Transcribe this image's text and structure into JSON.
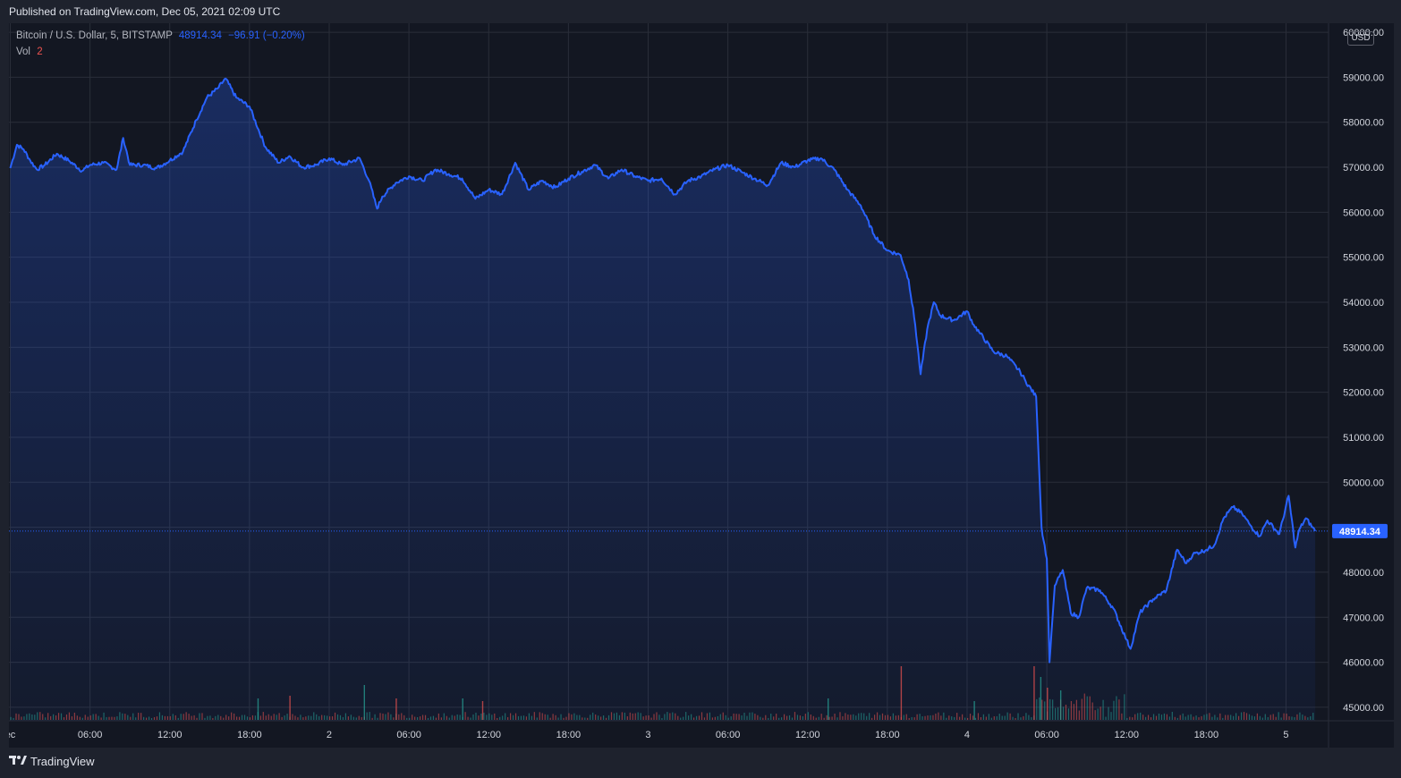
{
  "header": {
    "published": "Published on TradingView.com, Dec 05, 2021 02:09 UTC"
  },
  "legend": {
    "symbol": "Bitcoin / U.S. Dollar, 5, BITSTAMP",
    "last": "48914.34",
    "change": "−96.91 (−0.20%)",
    "vol_label": "Vol",
    "vol_value": "2"
  },
  "price_axis": {
    "currency": "USD",
    "last_price_label": "48914.34"
  },
  "footer": {
    "brand": "TradingView"
  },
  "colors": {
    "line": "#2962ff",
    "up": "#26a69a",
    "down": "#ef5350",
    "bg": "#131722",
    "grid": "#2a2e39"
  },
  "chart_data": {
    "type": "area",
    "title": "Bitcoin / U.S. Dollar, 5, BITSTAMP",
    "y_ticks": [
      45000,
      46000,
      47000,
      48000,
      49000,
      50000,
      51000,
      52000,
      53000,
      54000,
      55000,
      56000,
      57000,
      58000,
      59000,
      60000
    ],
    "ylim": [
      44700,
      60200
    ],
    "x_ticks": [
      {
        "label": "ec",
        "h": 0
      },
      {
        "label": "06:00",
        "h": 6
      },
      {
        "label": "12:00",
        "h": 12
      },
      {
        "label": "18:00",
        "h": 18
      },
      {
        "label": "2",
        "h": 24
      },
      {
        "label": "06:00",
        "h": 30
      },
      {
        "label": "12:00",
        "h": 36
      },
      {
        "label": "18:00",
        "h": 42
      },
      {
        "label": "3",
        "h": 48
      },
      {
        "label": "06:00",
        "h": 54
      },
      {
        "label": "12:00",
        "h": 60
      },
      {
        "label": "18:00",
        "h": 66
      },
      {
        "label": "4",
        "h": 72
      },
      {
        "label": "06:00",
        "h": 78
      },
      {
        "label": "12:00",
        "h": 84
      },
      {
        "label": "18:00",
        "h": 90
      },
      {
        "label": "5",
        "h": 96
      }
    ],
    "xlim": [
      -0.1,
      99.2
    ],
    "last_price": 48914.34,
    "series": [
      {
        "values": [
          [
            0,
            56980
          ],
          [
            0.5,
            57500
          ],
          [
            1,
            57400
          ],
          [
            1.5,
            57150
          ],
          [
            2,
            56950
          ],
          [
            2.6,
            57050
          ],
          [
            3.5,
            57300
          ],
          [
            4.4,
            57150
          ],
          [
            5.4,
            56920
          ],
          [
            6,
            57050
          ],
          [
            7,
            57100
          ],
          [
            8,
            56950
          ],
          [
            8.5,
            57650
          ],
          [
            9,
            57050
          ],
          [
            10,
            57050
          ],
          [
            11,
            56980
          ],
          [
            12,
            57150
          ],
          [
            13,
            57350
          ],
          [
            14,
            58050
          ],
          [
            14.8,
            58550
          ],
          [
            15.6,
            58750
          ],
          [
            16.2,
            58970
          ],
          [
            17,
            58550
          ],
          [
            18,
            58350
          ],
          [
            19.2,
            57450
          ],
          [
            20.2,
            57100
          ],
          [
            21,
            57250
          ],
          [
            22,
            57000
          ],
          [
            23,
            57050
          ],
          [
            24,
            57200
          ],
          [
            25,
            57050
          ],
          [
            26.3,
            57200
          ],
          [
            27,
            56700
          ],
          [
            27.6,
            56080
          ],
          [
            28,
            56350
          ],
          [
            29,
            56650
          ],
          [
            30,
            56800
          ],
          [
            31,
            56700
          ],
          [
            32,
            56950
          ],
          [
            33,
            56850
          ],
          [
            34,
            56750
          ],
          [
            35,
            56300
          ],
          [
            36,
            56500
          ],
          [
            37,
            56400
          ],
          [
            38,
            57100
          ],
          [
            39,
            56500
          ],
          [
            40,
            56700
          ],
          [
            41,
            56550
          ],
          [
            42,
            56750
          ],
          [
            43,
            56900
          ],
          [
            44,
            57050
          ],
          [
            45,
            56750
          ],
          [
            46,
            56950
          ],
          [
            47,
            56800
          ],
          [
            48,
            56700
          ],
          [
            49,
            56750
          ],
          [
            50,
            56400
          ],
          [
            51,
            56700
          ],
          [
            52,
            56800
          ],
          [
            53,
            56950
          ],
          [
            54,
            57050
          ],
          [
            55,
            56900
          ],
          [
            56,
            56750
          ],
          [
            57,
            56600
          ],
          [
            58,
            57100
          ],
          [
            59,
            57000
          ],
          [
            60,
            57150
          ],
          [
            61,
            57200
          ],
          [
            62,
            56950
          ],
          [
            63,
            56500
          ],
          [
            64,
            56150
          ],
          [
            65,
            55500
          ],
          [
            66,
            55150
          ],
          [
            67,
            55050
          ],
          [
            67.6,
            54500
          ],
          [
            68.1,
            53500
          ],
          [
            68.5,
            52400
          ],
          [
            69,
            53400
          ],
          [
            69.5,
            54000
          ],
          [
            70,
            53700
          ],
          [
            71,
            53600
          ],
          [
            72,
            53800
          ],
          [
            72.5,
            53500
          ],
          [
            73,
            53300
          ],
          [
            74,
            52900
          ],
          [
            75,
            52800
          ],
          [
            76,
            52450
          ],
          [
            76.4,
            52250
          ],
          [
            77.2,
            51900
          ],
          [
            77.6,
            49000
          ],
          [
            78,
            48300
          ],
          [
            78.2,
            46000
          ],
          [
            78.6,
            47700
          ],
          [
            79.2,
            48050
          ],
          [
            79.8,
            47100
          ],
          [
            80.4,
            47000
          ],
          [
            81,
            47650
          ],
          [
            82,
            47600
          ],
          [
            83,
            47200
          ],
          [
            84,
            46500
          ],
          [
            84.3,
            46300
          ],
          [
            85,
            47100
          ],
          [
            86,
            47400
          ],
          [
            87,
            47600
          ],
          [
            87.8,
            48500
          ],
          [
            88.5,
            48200
          ],
          [
            89,
            48400
          ],
          [
            90,
            48500
          ],
          [
            90.6,
            48600
          ],
          [
            91.3,
            49200
          ],
          [
            92,
            49450
          ],
          [
            92.7,
            49300
          ],
          [
            93.3,
            49050
          ],
          [
            94,
            48800
          ],
          [
            94.6,
            49150
          ],
          [
            95.5,
            48850
          ],
          [
            96.2,
            49700
          ],
          [
            96.7,
            48550
          ],
          [
            97,
            48950
          ],
          [
            97.5,
            49200
          ],
          [
            98.2,
            48914
          ]
        ]
      }
    ],
    "volume_spikes": [
      [
        18.6,
        0.4
      ],
      [
        21,
        0.45
      ],
      [
        26.6,
        0.65
      ],
      [
        29,
        0.4
      ],
      [
        34,
        0.4
      ],
      [
        35.5,
        0.35
      ],
      [
        61.5,
        0.4
      ],
      [
        67,
        1.0
      ],
      [
        72.5,
        0.35
      ],
      [
        77,
        1.0
      ],
      [
        77.5,
        0.8
      ],
      [
        78,
        0.6
      ],
      [
        79,
        0.55
      ]
    ]
  }
}
